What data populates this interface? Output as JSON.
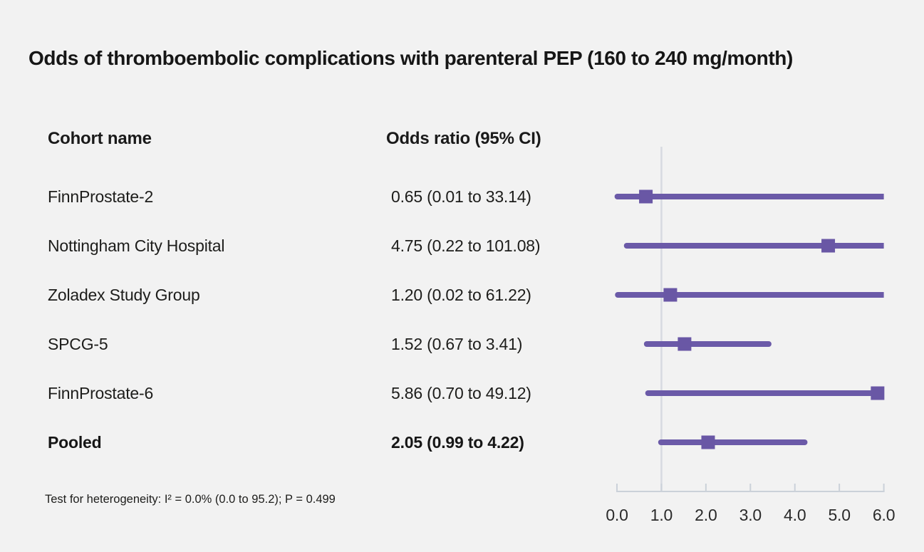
{
  "page": {
    "background": "#f2f2f2"
  },
  "title": "Odds of thromboembolic complications with parenteral PEP (160 to 240 mg/month)",
  "columns": {
    "cohort": "Cohort name",
    "odds": "Odds ratio (95% CI)"
  },
  "footnote": "Test for heterogeneity: I² = 0.0% (0.0 to 95.2); P = 0.499",
  "chart_data": {
    "type": "scatter",
    "subtype": "forest-plot",
    "title": "Odds of thromboembolic complications with parenteral PEP (160 to 240 mg/month)",
    "xlabel": "Odds ratio (95% CI)",
    "xlim": [
      0,
      6
    ],
    "x_ticks": [
      0,
      1,
      2,
      3,
      4,
      5,
      6
    ],
    "x_tick_labels": [
      "0.0",
      "1.0",
      "2.0",
      "3.0",
      "4.0",
      "5.0",
      "6.0"
    ],
    "reference_line_x": 1.0,
    "clip_max": 6.0,
    "grid": false,
    "legend": "none",
    "series": [
      {
        "name": "FinnProstate-2",
        "or_text": "0.65 (0.01 to 33.14)",
        "or": 0.65,
        "ci_low": 0.01,
        "ci_high": 33.14,
        "pooled": false
      },
      {
        "name": "Nottingham City Hospital",
        "or_text": "4.75 (0.22 to 101.08)",
        "or": 4.75,
        "ci_low": 0.22,
        "ci_high": 101.08,
        "pooled": false
      },
      {
        "name": "Zoladex Study Group",
        "or_text": "1.20 (0.02 to 61.22)",
        "or": 1.2,
        "ci_low": 0.02,
        "ci_high": 61.22,
        "pooled": false
      },
      {
        "name": "SPCG-5",
        "or_text": "1.52 (0.67 to 3.41)",
        "or": 1.52,
        "ci_low": 0.67,
        "ci_high": 3.41,
        "pooled": false
      },
      {
        "name": "FinnProstate-6",
        "or_text": "5.86 (0.70 to 49.12)",
        "or": 5.86,
        "ci_low": 0.7,
        "ci_high": 49.12,
        "pooled": false
      },
      {
        "name": "Pooled",
        "or_text": "2.05 (0.99 to 4.22)",
        "or": 2.05,
        "ci_low": 0.99,
        "ci_high": 4.22,
        "pooled": true
      }
    ],
    "colors": {
      "marker": "#6957a5",
      "ci_line": "#6b5aa8",
      "axis": "#cbd1d9",
      "reference_line": "#d7dae1",
      "tick_label": "#2a2a2a",
      "background": "#f2f2f2"
    }
  }
}
